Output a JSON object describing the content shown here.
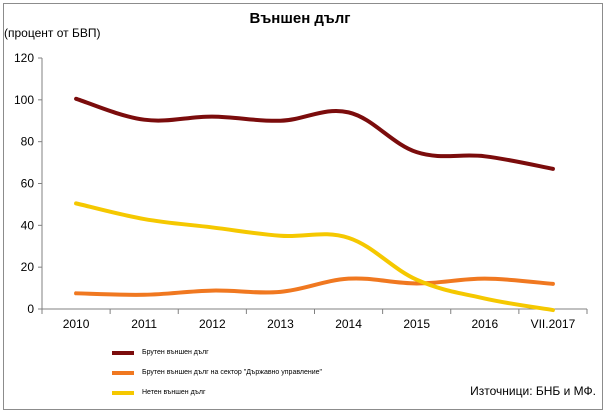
{
  "chart_data": {
    "type": "line",
    "title": "Външен дълг",
    "ylabel": "(процент от БВП)",
    "categories": [
      "2010",
      "2011",
      "2012",
      "2013",
      "2014",
      "2015",
      "2016",
      "VII.2017"
    ],
    "ylim": [
      0,
      120
    ],
    "yticks": [
      0,
      20,
      40,
      60,
      80,
      100,
      120
    ],
    "grid": false,
    "series": [
      {
        "name": "Брутен външен дълг",
        "color": "#7b0c0c",
        "values": [
          100.5,
          90.5,
          92,
          90,
          94,
          75,
          73,
          67
        ]
      },
      {
        "name": "Брутен външен дълг на сектор \"Държавно управление\"",
        "color": "#f07820",
        "values": [
          7.5,
          6.8,
          8.8,
          8.2,
          14.5,
          12.2,
          14.5,
          12
        ]
      },
      {
        "name": "Нетен външен дълг",
        "color": "#f5c800",
        "values": [
          50.5,
          43,
          39,
          35,
          34,
          14,
          5,
          -0.5
        ]
      }
    ],
    "legend_position": "bottom-left",
    "source": "Източници: БНБ и МФ."
  }
}
